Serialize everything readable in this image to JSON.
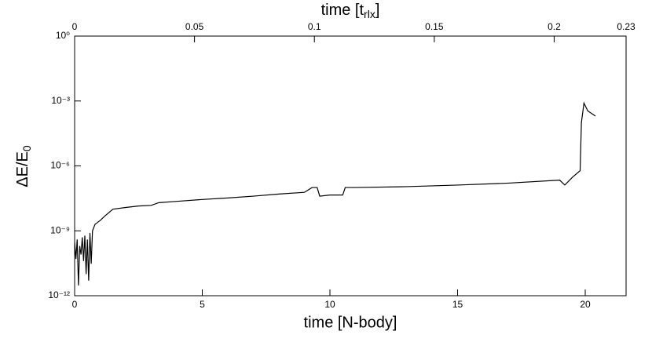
{
  "chart_data": {
    "type": "line",
    "xlabel": {
      "text": "time [N-body]"
    },
    "x2label": {
      "text": "time [t",
      "sub": "rlx",
      "end": "]"
    },
    "ylabel": {
      "text": "ΔE/E",
      "sub": "0"
    },
    "xlim": [
      0,
      21.6
    ],
    "xticks": [
      0,
      5,
      10,
      15,
      20
    ],
    "x2lim": [
      0,
      0.23
    ],
    "x2ticks": [
      0,
      0.05,
      0.1,
      0.15,
      0.2,
      0.23
    ],
    "ylim": [
      1e-12,
      1
    ],
    "log_y": true,
    "yticks": [
      {
        "value": 1,
        "label": "10⁰"
      },
      {
        "value": 0.001,
        "label": "10⁻³"
      },
      {
        "value": 1e-06,
        "label": "10⁻⁶"
      },
      {
        "value": 1e-09,
        "label": "10⁻⁹"
      },
      {
        "value": 1e-12,
        "label": "10⁻¹²"
      }
    ],
    "grid": false,
    "series": [
      {
        "color": "#000000",
        "x": [
          0,
          0.05,
          0.1,
          0.15,
          0.2,
          0.25,
          0.3,
          0.35,
          0.4,
          0.45,
          0.5,
          0.55,
          0.6,
          0.65,
          0.7,
          0.8,
          1.0,
          1.2,
          1.5,
          2.0,
          2.5,
          3.0,
          3.3,
          4.0,
          5.0,
          6.0,
          7.0,
          8.0,
          9.0,
          9.3,
          9.5,
          9.6,
          10.0,
          10.5,
          10.6,
          11.0,
          13.0,
          15.0,
          17.0,
          19.0,
          19.2,
          19.5,
          19.8,
          19.85,
          19.95,
          20.1,
          20.4
        ],
        "values": [
          3e-10,
          5e-11,
          4e-10,
          3e-12,
          2e-10,
          8e-11,
          5e-10,
          4e-11,
          6e-10,
          1e-11,
          4e-10,
          5e-12,
          8e-10,
          3e-11,
          1e-09,
          2e-09,
          3e-09,
          5e-09,
          1e-08,
          1.2e-08,
          1.4e-08,
          1.5e-08,
          2e-08,
          2.3e-08,
          2.8e-08,
          3.3e-08,
          4e-08,
          5e-08,
          6e-08,
          1e-07,
          1e-07,
          4e-08,
          4.5e-08,
          4.5e-08,
          1e-07,
          1e-07,
          1.1e-07,
          1.3e-07,
          1.6e-07,
          2.2e-07,
          1.3e-07,
          3e-07,
          6e-07,
          0.0001,
          0.0008,
          0.00035,
          0.0002
        ]
      }
    ]
  }
}
